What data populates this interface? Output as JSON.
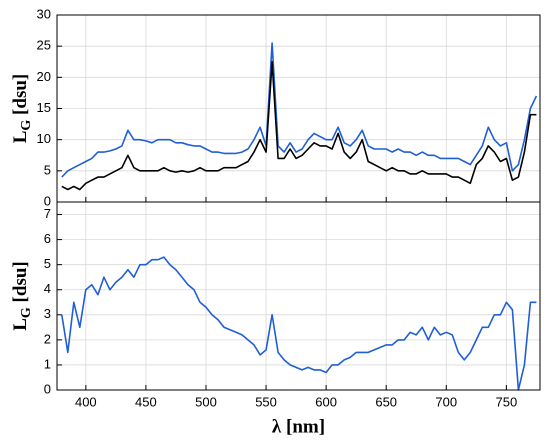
{
  "chart_data": [
    {
      "type": "line",
      "x": [
        380,
        385,
        390,
        395,
        400,
        405,
        410,
        415,
        420,
        425,
        430,
        435,
        440,
        445,
        450,
        455,
        460,
        465,
        470,
        475,
        480,
        485,
        490,
        495,
        500,
        505,
        510,
        515,
        520,
        525,
        530,
        535,
        540,
        545,
        550,
        555,
        560,
        565,
        570,
        575,
        580,
        585,
        590,
        595,
        600,
        605,
        610,
        615,
        620,
        625,
        630,
        635,
        640,
        645,
        650,
        655,
        660,
        665,
        670,
        675,
        680,
        685,
        690,
        695,
        700,
        705,
        710,
        715,
        720,
        725,
        730,
        735,
        740,
        745,
        750,
        755,
        760,
        765,
        770,
        775
      ],
      "series": [
        {
          "color": "#1f5fd6",
          "values": [
            4,
            5,
            5.5,
            6,
            6.5,
            7,
            8,
            8,
            8.2,
            8.5,
            9,
            11.5,
            10,
            10,
            9.8,
            9.5,
            10,
            10,
            10,
            9.5,
            9.5,
            9.2,
            9,
            9,
            8.5,
            8,
            8,
            7.8,
            7.8,
            7.8,
            8,
            8.5,
            10,
            12,
            9,
            25.5,
            9,
            8,
            9.5,
            8,
            8.5,
            10,
            11,
            10.5,
            10,
            10,
            12,
            9.5,
            9,
            10,
            11.5,
            9,
            8.5,
            8.5,
            8.5,
            8,
            8.5,
            8,
            8,
            7.5,
            8,
            7.5,
            7.5,
            7,
            7,
            7,
            7,
            6.5,
            6,
            7.5,
            9,
            12,
            10,
            9,
            9.5,
            5,
            6,
            10,
            15,
            17
          ]
        },
        {
          "color": "#000000",
          "values": [
            2.5,
            2,
            2.5,
            2,
            3,
            3.5,
            4,
            4,
            4.5,
            5,
            5.5,
            7.5,
            5.5,
            5,
            5,
            5,
            5,
            5.5,
            5,
            4.8,
            5,
            4.8,
            5,
            5.5,
            5,
            5,
            5,
            5.5,
            5.5,
            5.5,
            6,
            6.5,
            8,
            10,
            8,
            22.5,
            7,
            7,
            8.5,
            7,
            7.5,
            8.5,
            9.5,
            9,
            9,
            8.5,
            11,
            8,
            7,
            8,
            10,
            6.5,
            6,
            5.5,
            5,
            5.5,
            5,
            5,
            4.5,
            4.5,
            5,
            4.5,
            4.5,
            4.5,
            4.5,
            4,
            4,
            3.5,
            3,
            6,
            7,
            9,
            8,
            6.5,
            7,
            3.5,
            4,
            8,
            14,
            14
          ]
        }
      ],
      "xlim": [
        376,
        778
      ],
      "ylim": [
        0,
        30
      ],
      "yticks": [
        0,
        5,
        10,
        15,
        20,
        25,
        30
      ],
      "xticks": [
        400,
        450,
        500,
        550,
        600,
        650,
        700,
        750
      ],
      "ylabel": [
        "L",
        "G",
        " [dsu]"
      ],
      "grid": true
    },
    {
      "type": "line",
      "x": [
        380,
        385,
        390,
        395,
        400,
        405,
        410,
        415,
        420,
        425,
        430,
        435,
        440,
        445,
        450,
        455,
        460,
        465,
        470,
        475,
        480,
        485,
        490,
        495,
        500,
        505,
        510,
        515,
        520,
        525,
        530,
        535,
        540,
        545,
        550,
        555,
        560,
        565,
        570,
        575,
        580,
        585,
        590,
        595,
        600,
        605,
        610,
        615,
        620,
        625,
        630,
        635,
        640,
        645,
        650,
        655,
        660,
        665,
        670,
        675,
        680,
        685,
        690,
        695,
        700,
        705,
        710,
        715,
        720,
        725,
        730,
        735,
        740,
        745,
        750,
        755,
        760,
        765,
        770,
        775
      ],
      "series": [
        {
          "color": "#1f5fd6",
          "values": [
            3,
            1.5,
            3.5,
            2.5,
            4,
            4.2,
            3.8,
            4.5,
            4,
            4.3,
            4.5,
            4.8,
            4.5,
            5,
            5,
            5.2,
            5.2,
            5.3,
            5,
            4.8,
            4.5,
            4.2,
            4,
            3.5,
            3.3,
            3,
            2.8,
            2.5,
            2.4,
            2.3,
            2.2,
            2,
            1.8,
            1.4,
            1.6,
            3,
            1.5,
            1.2,
            1,
            0.9,
            0.8,
            0.9,
            0.8,
            0.8,
            0.7,
            1,
            1,
            1.2,
            1.3,
            1.5,
            1.5,
            1.5,
            1.6,
            1.7,
            1.8,
            1.8,
            2,
            2,
            2.3,
            2.2,
            2.5,
            2,
            2.5,
            2.2,
            2.3,
            2.2,
            1.5,
            1.2,
            1.5,
            2,
            2.5,
            2.5,
            3,
            3,
            3.5,
            3.2,
            0,
            1,
            3.5,
            3.5
          ]
        }
      ],
      "xlim": [
        376,
        778
      ],
      "ylim": [
        0,
        7.5
      ],
      "yticks": [
        0,
        1,
        2,
        3,
        4,
        5,
        6,
        7
      ],
      "xticks": [
        400,
        450,
        500,
        550,
        600,
        650,
        700,
        750
      ],
      "ylabel": [
        "L",
        "G",
        " [dsu]"
      ],
      "xlabel": "λ [nm]",
      "grid": true
    }
  ]
}
